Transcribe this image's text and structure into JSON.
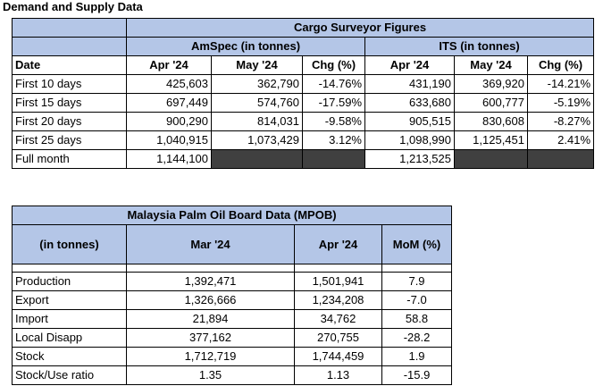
{
  "page_title": "Demand and Supply Data",
  "cargo": {
    "title": "Cargo Surveyor Figures",
    "groups": [
      "AmSpec (in tonnes)",
      "ITS (in tonnes)"
    ],
    "columns": [
      "Date",
      "Apr '24",
      "May '24",
      "Chg (%)",
      "Apr '24",
      "May '24",
      "Chg (%)"
    ],
    "rows": [
      [
        "First 10 days",
        "425,603",
        "362,790",
        "-14.76%",
        "431,190",
        "369,920",
        "-14.21%"
      ],
      [
        "First 15 days",
        "697,449",
        "574,760",
        "-17.59%",
        "633,680",
        "600,777",
        "-5.19%"
      ],
      [
        "First 20 days",
        "900,290",
        "814,031",
        "-9.58%",
        "905,515",
        "830,608",
        "-8.27%"
      ],
      [
        "First 25 days",
        "1,040,915",
        "1,073,429",
        "3.12%",
        "1,098,990",
        "1,125,451",
        "2.41%"
      ]
    ],
    "full_month": {
      "label": "Full month",
      "amspec_apr": "1,144,100",
      "its_apr": "1,213,525"
    }
  },
  "mpob": {
    "title": "Malaysia Palm Oil Board Data (MPOB)",
    "columns": [
      "(in tonnes)",
      "Mar  '24",
      "Apr  '24",
      "MoM (%)"
    ],
    "rows": [
      [
        "Production",
        "1,392,471",
        "1,501,941",
        "7.9"
      ],
      [
        "Export",
        "1,326,666",
        "1,234,208",
        "-7.0"
      ],
      [
        "Import",
        "21,894",
        "34,762",
        "58.8"
      ],
      [
        "Local Disapp",
        "377,162",
        "270,755",
        "-28.2"
      ],
      [
        "Stock",
        "1,712,719",
        "1,744,459",
        "1.9"
      ],
      [
        "Stock/Use ratio",
        "1.35",
        "1.13",
        "-15.9"
      ]
    ]
  }
}
